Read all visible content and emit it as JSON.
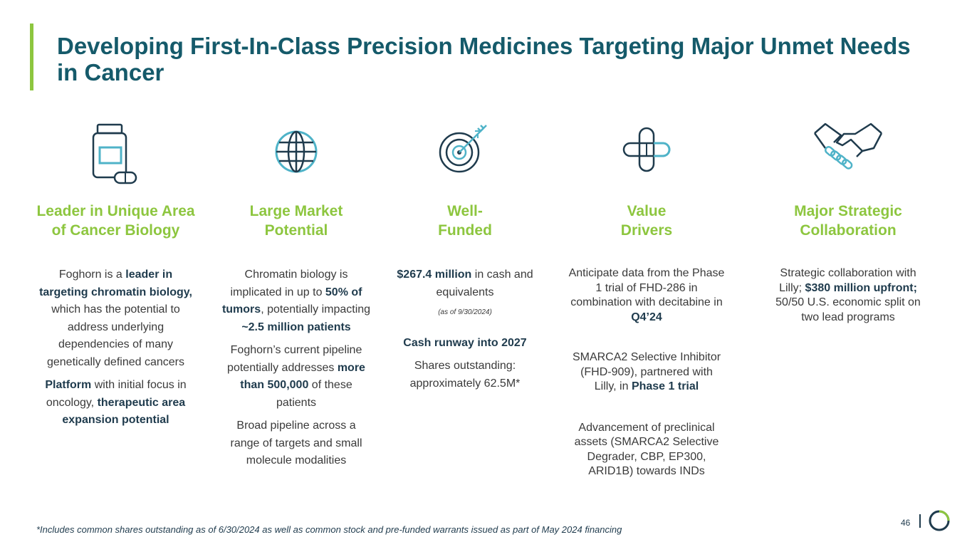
{
  "title": "Developing First-In-Class Precision Medicines Targeting Major Unmet Needs in Cancer",
  "columns": [
    {
      "icon": "pill-bottle-icon",
      "heading_1": "Leader in Unique Area",
      "heading_2": "of Cancer Biology",
      "p1_a": "Foghorn is a ",
      "p1_b": "leader in targeting chromatin biology,",
      "p1_c": " which has the potential to address underlying dependencies of many genetically defined cancers",
      "p2_a": "Platform",
      "p2_b": " with initial focus in oncology, ",
      "p2_c": "therapeutic area expansion potential"
    },
    {
      "icon": "globe-icon",
      "heading_1": "Large Market",
      "heading_2": "Potential",
      "p1_a": "Chromatin biology is implicated in up to ",
      "p1_b": "50% of tumors",
      "p1_c": ", potentially impacting ",
      "p1_d": "~2.5 million patients",
      "p2_a": "Foghorn’s current pipeline potentially addresses ",
      "p2_b": "more than 500,000",
      "p2_c": " of these patients",
      "p3": "Broad pipeline across a range of targets and small molecule modalities"
    },
    {
      "icon": "target-icon",
      "heading_1": "Well-",
      "heading_2": "Funded",
      "p1_a": "$267.4 million",
      "p1_b": " in cash and equivalents",
      "p1_note": "(as of 9/30/2024)",
      "p2": "Cash runway into 2027",
      "p3": "Shares outstanding: approximately 62.5M*"
    },
    {
      "icon": "pills-cross-icon",
      "heading_1": "Value",
      "heading_2": "Drivers",
      "p1_a": "Anticipate data from the Phase 1 trial of FHD-286 in combination with decitabine in ",
      "p1_b": "Q4’24",
      "p2_a": "SMARCA2 Selective Inhibitor (FHD-909), partnered with Lilly, in ",
      "p2_b": "Phase 1 trial",
      "p3": "Advancement of preclinical assets (SMARCA2 Selective Degrader, CBP, EP300, ARID1B) towards INDs"
    },
    {
      "icon": "handshake-icon",
      "heading_1": "Major Strategic",
      "heading_2": "Collaboration",
      "p1_a": "Strategic collaboration with Lilly; ",
      "p1_b": "$380 million upfront;",
      "p1_c": " 50/50 U.S. economic split on two lead programs"
    }
  ],
  "footnote": "*Includes common shares outstanding as of 6/30/2024 as well as common stock and pre-funded warrants issued as part of May 2024 financing",
  "page_number": "46",
  "colors": {
    "title": "#155a6a",
    "accent": "#8dc63f",
    "icon_dark": "#1f3b4d",
    "icon_light": "#4fb3c8"
  }
}
